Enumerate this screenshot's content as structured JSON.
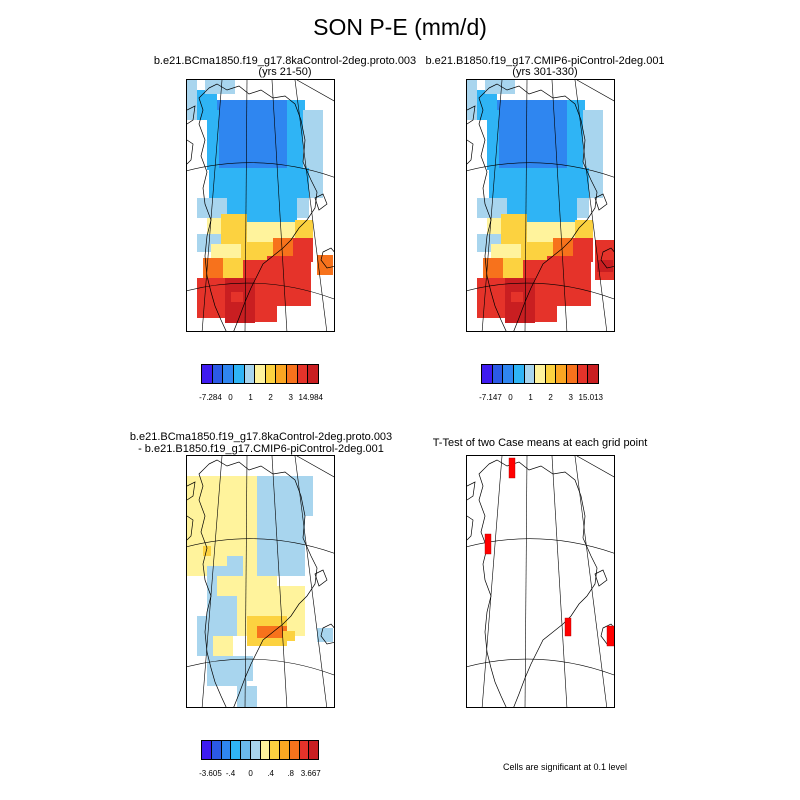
{
  "figure": {
    "title": "SON P-E (mm/d)"
  },
  "panels": [
    {
      "title_line1": "b.e21.BCma1850.f19_g17.8kaControl-2deg.proto.003",
      "title_line2": "(yrs 21-50)"
    },
    {
      "title_line1": "b.e21.B1850.f19_g17.CMIP6-piControl-2deg.001",
      "title_line2": "(yrs 301-330)"
    },
    {
      "title_line1": "b.e21.BCma1850.f19_g17.8kaControl-2deg.proto.003",
      "title_line2": "- b.e21.B1850.f19_g17.CMIP6-piControl-2deg.001"
    },
    {
      "title_line1": "T-Test of two Case means at each grid point"
    }
  ],
  "colorbars": {
    "full": {
      "colors": [
        "#3e1bf0",
        "#2b5ae6",
        "#2f86f0",
        "#2fb4f5",
        "#a8d5ee",
        "#fff39c",
        "#fcd240",
        "#fba622",
        "#f7721c",
        "#e5332a",
        "#c91e21"
      ],
      "labels": [
        "-7.284",
        "0",
        "1",
        "2",
        "3",
        "14.984"
      ]
    },
    "full2": {
      "colors": [
        "#3e1bf0",
        "#2b5ae6",
        "#2f86f0",
        "#2fb4f5",
        "#a8d5ee",
        "#fff39c",
        "#fcd240",
        "#fba622",
        "#f7721c",
        "#e5332a",
        "#c91e21"
      ],
      "labels": [
        "-7.147",
        "0",
        "1",
        "2",
        "3",
        "15.013"
      ]
    },
    "diff": {
      "colors": [
        "#3e1bf0",
        "#2b5ae6",
        "#2f86f0",
        "#2fb4f5",
        "#6ab8ec",
        "#a8d5ee",
        "#fff39c",
        "#fcd240",
        "#fba622",
        "#f7721c",
        "#e5332a",
        "#c91e21"
      ],
      "labels": [
        "-3.605",
        "-.4",
        "0",
        ".4",
        ".8",
        "3.667"
      ]
    }
  },
  "ttest_note": "Cells are significant at 0.1 level",
  "map_colors": {
    "deep_blue": "#2f86f0",
    "mid_blue": "#2fb4f5",
    "light_blue": "#a8d5ee",
    "light_yellow": "#fff39c",
    "yellow": "#fcd240",
    "orange": "#f7721c",
    "red": "#e5332a",
    "dark_red": "#c91e21",
    "signif_red": "#ff0000"
  }
}
